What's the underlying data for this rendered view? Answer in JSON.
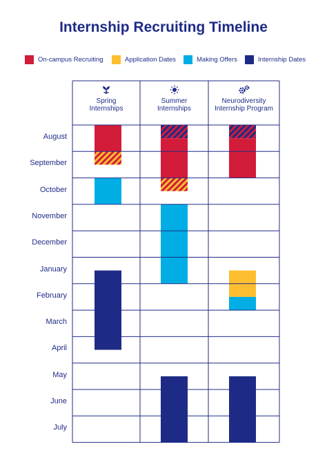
{
  "title": "Internship Recruiting Timeline",
  "legend": [
    {
      "label": "On-campus Recruiting",
      "color": "#d21c3a"
    },
    {
      "label": "Application Dates",
      "color": "#fdbe30"
    },
    {
      "label": "Making Offers",
      "color": "#00aee5"
    },
    {
      "label": "Internship Dates",
      "color": "#1e2b86"
    }
  ],
  "columns": [
    {
      "name": "Spring\nInternships",
      "icon": "sprout-icon"
    },
    {
      "name": "Summer\nInternships",
      "icon": "sun-icon"
    },
    {
      "name": "Neurodiversity\nInternship Program",
      "icon": "gears-icon"
    }
  ],
  "chart_data": {
    "type": "table",
    "months": [
      "August",
      "September",
      "October",
      "November",
      "December",
      "January",
      "February",
      "March",
      "April",
      "May",
      "June",
      "July"
    ],
    "bars": [
      {
        "column": 0,
        "category": "On-campus Recruiting",
        "start": 0,
        "end": 1
      },
      {
        "column": 0,
        "category": "On-campus Recruiting + Application Dates",
        "start": 1,
        "end": 1.5,
        "pattern": true
      },
      {
        "column": 0,
        "category": "Making Offers",
        "start": 2,
        "end": 3
      },
      {
        "column": 0,
        "category": "Internship Dates",
        "start": 5.5,
        "end": 8.5
      },
      {
        "column": 1,
        "category": "Internship Dates + On-campus Recruiting",
        "start": 0,
        "end": 0.5,
        "pattern": true
      },
      {
        "column": 1,
        "category": "On-campus Recruiting",
        "start": 0.5,
        "end": 2
      },
      {
        "column": 1,
        "category": "On-campus Recruiting + Application Dates",
        "start": 2,
        "end": 2.5,
        "pattern": true
      },
      {
        "column": 1,
        "category": "Making Offers",
        "start": 3,
        "end": 6
      },
      {
        "column": 1,
        "category": "Internship Dates",
        "start": 9.5,
        "end": 12
      },
      {
        "column": 2,
        "category": "Internship Dates + On-campus Recruiting",
        "start": 0,
        "end": 0.5,
        "pattern": true
      },
      {
        "column": 2,
        "category": "On-campus Recruiting",
        "start": 0.5,
        "end": 2
      },
      {
        "column": 2,
        "category": "Application Dates",
        "start": 5.5,
        "end": 6.5
      },
      {
        "column": 2,
        "category": "Making Offers",
        "start": 6.5,
        "end": 7
      },
      {
        "column": 2,
        "category": "Internship Dates",
        "start": 9.5,
        "end": 12
      }
    ]
  }
}
